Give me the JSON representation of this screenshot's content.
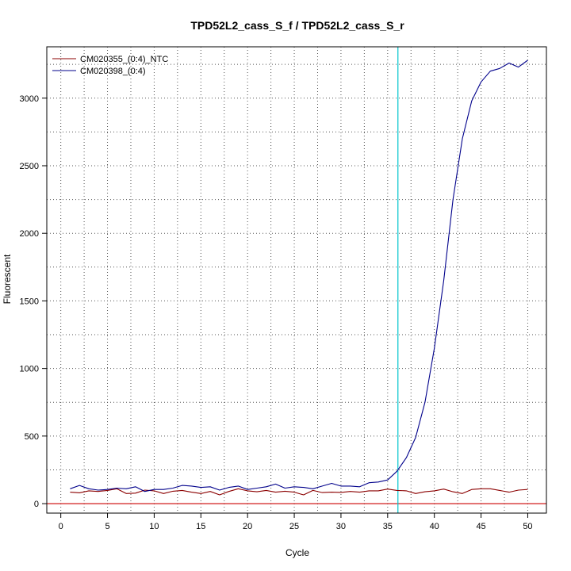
{
  "chart_data": {
    "type": "line",
    "title": "TPD52L2_cass_S_f / TPD52L2_cass_S_r",
    "xlabel": "Cycle",
    "ylabel": "Fluorescent",
    "xlim": [
      -1.5,
      52.0
    ],
    "ylim": [
      -70,
      3380
    ],
    "x_ticks": [
      0,
      5,
      10,
      15,
      20,
      25,
      30,
      35,
      40,
      45,
      50
    ],
    "y_ticks": [
      0,
      500,
      1000,
      1500,
      2000,
      2500,
      3000
    ],
    "grid": true,
    "legend_position": "top-left",
    "threshold_x": 36.1,
    "baseline_y": 0,
    "series": [
      {
        "name": "CM020355_(0:4)_NTC",
        "color": "#8b0000",
        "x": [
          1,
          2,
          3,
          4,
          5,
          6,
          7,
          8,
          9,
          10,
          11,
          12,
          13,
          14,
          15,
          16,
          17,
          18,
          19,
          20,
          21,
          22,
          23,
          24,
          25,
          26,
          27,
          28,
          29,
          30,
          31,
          32,
          33,
          34,
          35,
          36,
          37,
          38,
          39,
          40,
          41,
          42,
          43,
          44,
          45,
          46,
          47,
          48,
          49,
          50
        ],
        "y": [
          85,
          80,
          95,
          90,
          98,
          110,
          75,
          78,
          100,
          95,
          75,
          92,
          98,
          85,
          75,
          90,
          65,
          90,
          110,
          95,
          88,
          98,
          85,
          92,
          85,
          65,
          98,
          82,
          85,
          83,
          90,
          85,
          95,
          95,
          108,
          98,
          95,
          75,
          88,
          95,
          108,
          88,
          75,
          105,
          110,
          110,
          98,
          85,
          100,
          105
        ]
      },
      {
        "name": "CM020398_(0:4)",
        "color": "#00008b",
        "x": [
          1,
          2,
          3,
          4,
          5,
          6,
          7,
          8,
          9,
          10,
          11,
          12,
          13,
          14,
          15,
          16,
          17,
          18,
          19,
          20,
          21,
          22,
          23,
          24,
          25,
          26,
          27,
          28,
          29,
          30,
          31,
          32,
          33,
          34,
          35,
          36,
          37,
          38,
          39,
          40,
          41,
          42,
          43,
          44,
          45,
          46,
          47,
          48,
          49,
          50
        ],
        "y": [
          110,
          135,
          110,
          100,
          105,
          115,
          110,
          125,
          90,
          105,
          105,
          115,
          135,
          130,
          120,
          125,
          100,
          120,
          130,
          105,
          115,
          125,
          145,
          115,
          125,
          120,
          110,
          130,
          150,
          130,
          130,
          125,
          155,
          160,
          175,
          240,
          340,
          490,
          750,
          1150,
          1650,
          2250,
          2700,
          2980,
          3120,
          3200,
          3220,
          3260,
          3230,
          3280
        ]
      }
    ]
  }
}
